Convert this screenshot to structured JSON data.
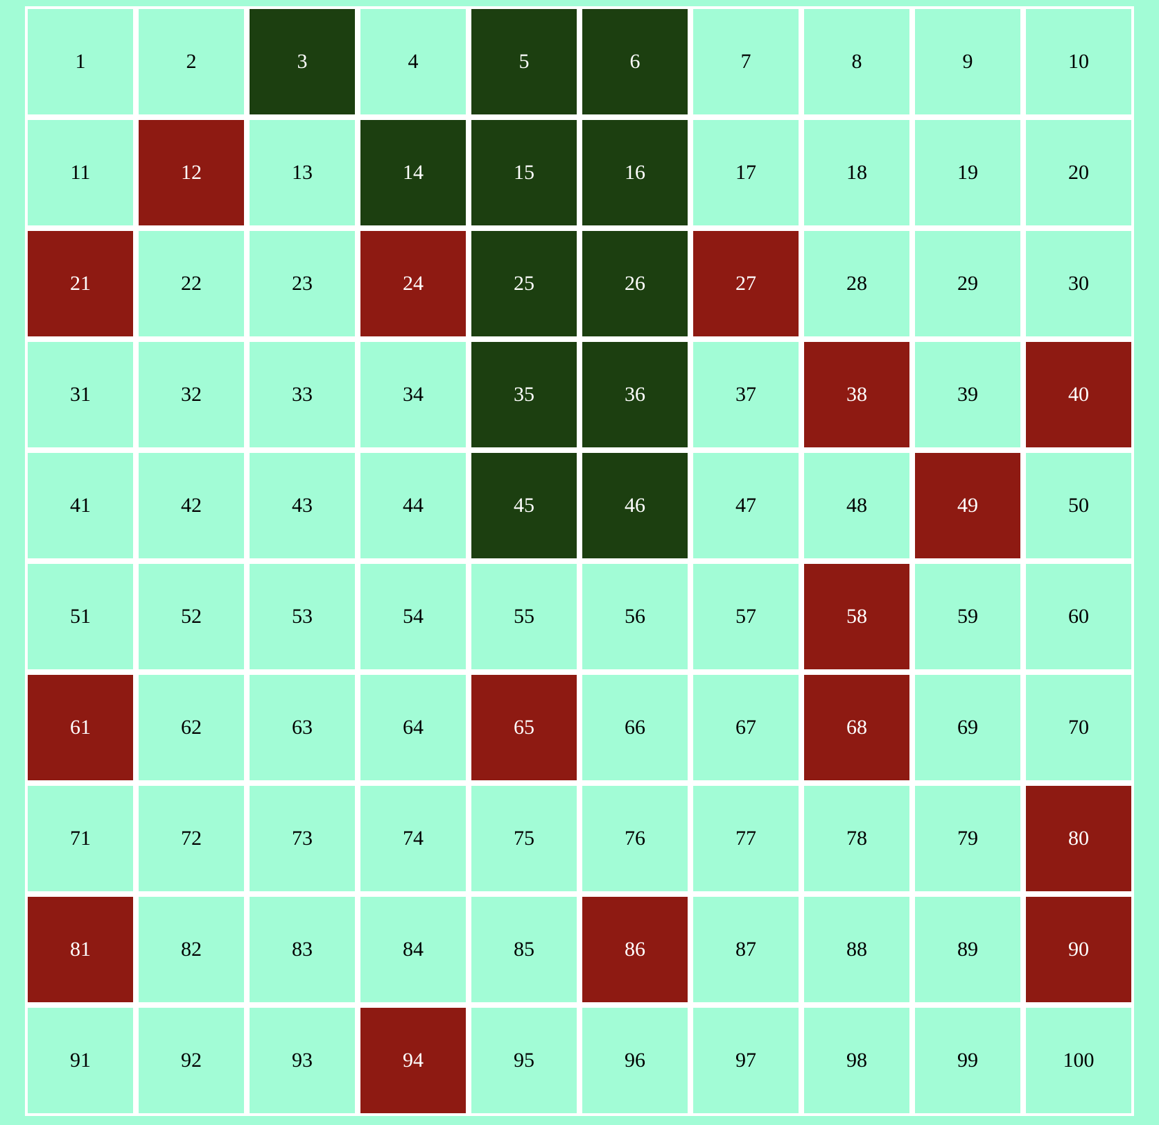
{
  "board": {
    "rows": 10,
    "cols": 10,
    "cells": [
      {
        "label": "1",
        "state": "empty"
      },
      {
        "label": "2",
        "state": "empty"
      },
      {
        "label": "3",
        "state": "snake"
      },
      {
        "label": "4",
        "state": "empty"
      },
      {
        "label": "5",
        "state": "snake"
      },
      {
        "label": "6",
        "state": "snake"
      },
      {
        "label": "7",
        "state": "empty"
      },
      {
        "label": "8",
        "state": "empty"
      },
      {
        "label": "9",
        "state": "empty"
      },
      {
        "label": "10",
        "state": "empty"
      },
      {
        "label": "11",
        "state": "empty"
      },
      {
        "label": "12",
        "state": "food"
      },
      {
        "label": "13",
        "state": "empty"
      },
      {
        "label": "14",
        "state": "snake"
      },
      {
        "label": "15",
        "state": "snake"
      },
      {
        "label": "16",
        "state": "snake"
      },
      {
        "label": "17",
        "state": "empty"
      },
      {
        "label": "18",
        "state": "empty"
      },
      {
        "label": "19",
        "state": "empty"
      },
      {
        "label": "20",
        "state": "empty"
      },
      {
        "label": "21",
        "state": "food"
      },
      {
        "label": "22",
        "state": "empty"
      },
      {
        "label": "23",
        "state": "empty"
      },
      {
        "label": "24",
        "state": "food"
      },
      {
        "label": "25",
        "state": "snake"
      },
      {
        "label": "26",
        "state": "snake"
      },
      {
        "label": "27",
        "state": "food"
      },
      {
        "label": "28",
        "state": "empty"
      },
      {
        "label": "29",
        "state": "empty"
      },
      {
        "label": "30",
        "state": "empty"
      },
      {
        "label": "31",
        "state": "empty"
      },
      {
        "label": "32",
        "state": "empty"
      },
      {
        "label": "33",
        "state": "empty"
      },
      {
        "label": "34",
        "state": "empty"
      },
      {
        "label": "35",
        "state": "snake"
      },
      {
        "label": "36",
        "state": "snake"
      },
      {
        "label": "37",
        "state": "empty"
      },
      {
        "label": "38",
        "state": "food"
      },
      {
        "label": "39",
        "state": "empty"
      },
      {
        "label": "40",
        "state": "food"
      },
      {
        "label": "41",
        "state": "empty"
      },
      {
        "label": "42",
        "state": "empty"
      },
      {
        "label": "43",
        "state": "empty"
      },
      {
        "label": "44",
        "state": "empty"
      },
      {
        "label": "45",
        "state": "snake"
      },
      {
        "label": "46",
        "state": "snake"
      },
      {
        "label": "47",
        "state": "empty"
      },
      {
        "label": "48",
        "state": "empty"
      },
      {
        "label": "49",
        "state": "food"
      },
      {
        "label": "50",
        "state": "empty"
      },
      {
        "label": "51",
        "state": "empty"
      },
      {
        "label": "52",
        "state": "empty"
      },
      {
        "label": "53",
        "state": "empty"
      },
      {
        "label": "54",
        "state": "empty"
      },
      {
        "label": "55",
        "state": "empty"
      },
      {
        "label": "56",
        "state": "empty"
      },
      {
        "label": "57",
        "state": "empty"
      },
      {
        "label": "58",
        "state": "food"
      },
      {
        "label": "59",
        "state": "empty"
      },
      {
        "label": "60",
        "state": "empty"
      },
      {
        "label": "61",
        "state": "food"
      },
      {
        "label": "62",
        "state": "empty"
      },
      {
        "label": "63",
        "state": "empty"
      },
      {
        "label": "64",
        "state": "empty"
      },
      {
        "label": "65",
        "state": "food"
      },
      {
        "label": "66",
        "state": "empty"
      },
      {
        "label": "67",
        "state": "empty"
      },
      {
        "label": "68",
        "state": "food"
      },
      {
        "label": "69",
        "state": "empty"
      },
      {
        "label": "70",
        "state": "empty"
      },
      {
        "label": "71",
        "state": "empty"
      },
      {
        "label": "72",
        "state": "empty"
      },
      {
        "label": "73",
        "state": "empty"
      },
      {
        "label": "74",
        "state": "empty"
      },
      {
        "label": "75",
        "state": "empty"
      },
      {
        "label": "76",
        "state": "empty"
      },
      {
        "label": "77",
        "state": "empty"
      },
      {
        "label": "78",
        "state": "empty"
      },
      {
        "label": "79",
        "state": "empty"
      },
      {
        "label": "80",
        "state": "food"
      },
      {
        "label": "81",
        "state": "food"
      },
      {
        "label": "82",
        "state": "empty"
      },
      {
        "label": "83",
        "state": "empty"
      },
      {
        "label": "84",
        "state": "empty"
      },
      {
        "label": "85",
        "state": "empty"
      },
      {
        "label": "86",
        "state": "food"
      },
      {
        "label": "87",
        "state": "empty"
      },
      {
        "label": "88",
        "state": "empty"
      },
      {
        "label": "89",
        "state": "empty"
      },
      {
        "label": "90",
        "state": "food"
      },
      {
        "label": "91",
        "state": "empty"
      },
      {
        "label": "92",
        "state": "empty"
      },
      {
        "label": "93",
        "state": "empty"
      },
      {
        "label": "94",
        "state": "food"
      },
      {
        "label": "95",
        "state": "empty"
      },
      {
        "label": "96",
        "state": "empty"
      },
      {
        "label": "97",
        "state": "empty"
      },
      {
        "label": "98",
        "state": "empty"
      },
      {
        "label": "99",
        "state": "empty"
      },
      {
        "label": "100",
        "state": "empty"
      }
    ]
  },
  "colors": {
    "background": "#a2fcd6",
    "grid_lines": "#ffffff",
    "empty": "#a2fcd6",
    "snake": "#1c3f10",
    "food": "#8e1a12"
  }
}
